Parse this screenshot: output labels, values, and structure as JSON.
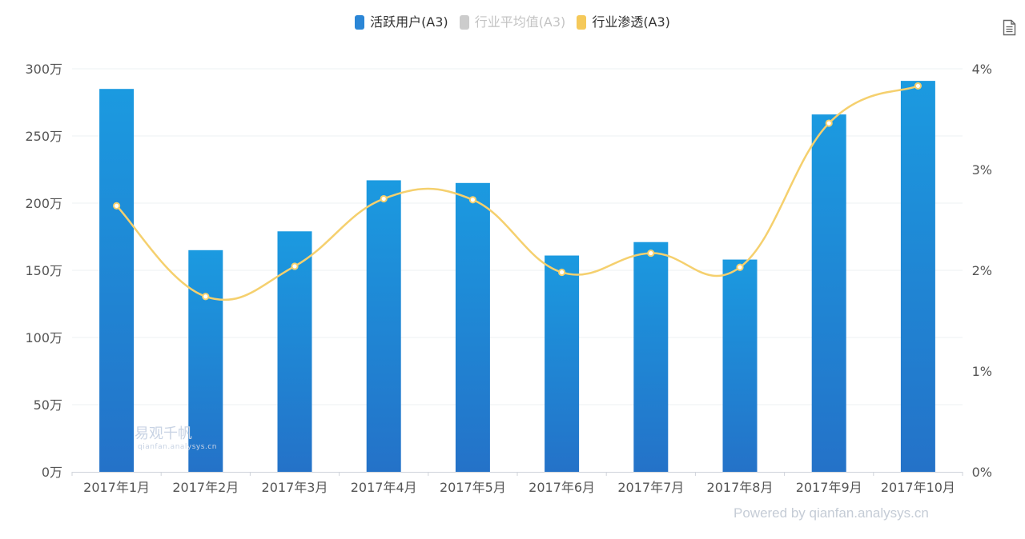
{
  "legend": [
    {
      "label": "活跃用户(A3)",
      "color": "#2b86d6"
    },
    {
      "label": "行业平均值(A3)",
      "color": "#cccccc"
    },
    {
      "label": "行业渗透(A3)",
      "color": "#f5c95a"
    }
  ],
  "watermark": {
    "title": "易观千帆",
    "subtitle": "qianfan.analysys.cn"
  },
  "footer": {
    "powered": "Powered by qianfan.analysys.cn"
  },
  "chart_data": {
    "type": "bar",
    "categories": [
      "2017年1月",
      "2017年2月",
      "2017年3月",
      "2017年4月",
      "2017年5月",
      "2017年6月",
      "2017年7月",
      "2017年8月",
      "2017年9月",
      "2017年10月"
    ],
    "series": [
      {
        "name": "活跃用户(A3)",
        "type": "bar",
        "axis": "left",
        "unit": "万",
        "values": [
          285,
          165,
          179,
          217,
          215,
          161,
          171,
          158,
          266,
          291
        ]
      },
      {
        "name": "行业渗透(A3)",
        "type": "line",
        "axis": "right",
        "unit": "%",
        "smooth": true,
        "values": [
          2.64,
          1.74,
          2.04,
          2.71,
          2.7,
          1.98,
          2.17,
          2.03,
          3.46,
          3.83
        ]
      }
    ],
    "y_left": {
      "min": 0,
      "max": 300,
      "ticks": [
        "0万",
        "50万",
        "100万",
        "150万",
        "200万",
        "250万",
        "300万"
      ]
    },
    "y_right": {
      "min": 0,
      "max": 4,
      "ticks": [
        "0%",
        "1%",
        "2%",
        "3%",
        "4%"
      ]
    },
    "grid": true,
    "legend_position": "top-center",
    "colors": {
      "bar_top": "#1b9ae0",
      "bar_bottom": "#2472c8",
      "line": "#f5d06e",
      "grid": "#eef0f3",
      "axis": "#cfd3da"
    }
  }
}
